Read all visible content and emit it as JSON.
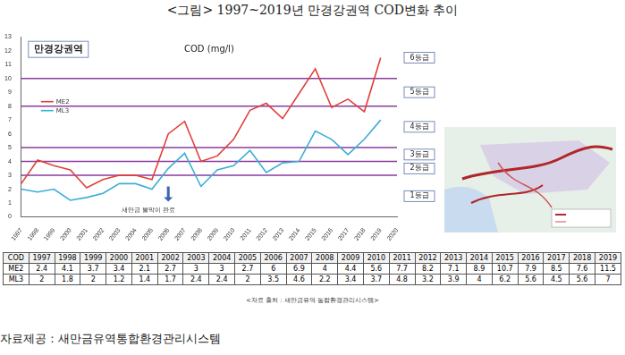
{
  "page_title": "<그림> 1997~2019년 만경강권역 COD변화 추이",
  "chart_data": {
    "type": "line",
    "title": "만경강권역",
    "subtitle": "COD (mg/l)",
    "categories": [
      "1997",
      "1998",
      "1999",
      "2000",
      "2001",
      "2002",
      "2003",
      "2004",
      "2005",
      "2006",
      "2007",
      "2008",
      "2009",
      "2010",
      "2011",
      "2012",
      "2013",
      "2014",
      "2015",
      "2016",
      "2017",
      "2018",
      "2019",
      "2020"
    ],
    "series": [
      {
        "name": "ME2",
        "color": "#e0403a",
        "values": [
          2.4,
          4.1,
          3.7,
          3.4,
          2.1,
          2.7,
          3,
          3,
          2.7,
          6,
          6.9,
          4,
          4.4,
          5.6,
          7.7,
          8.2,
          7.1,
          8.9,
          10.7,
          7.9,
          8.5,
          7.6,
          11.5,
          null
        ]
      },
      {
        "name": "ML3",
        "color": "#3aaed8",
        "values": [
          2,
          1.8,
          2,
          1.2,
          1.4,
          1.7,
          2.4,
          2.4,
          2,
          3.5,
          4.6,
          2.2,
          3.4,
          3.7,
          4.8,
          3.2,
          3.9,
          4,
          6.2,
          5.6,
          4.5,
          5.6,
          7,
          null
        ]
      }
    ],
    "ylim": [
      0,
      13
    ],
    "yticks": [
      0,
      1,
      2,
      3,
      4,
      5,
      6,
      7,
      8,
      9,
      10,
      11,
      12,
      13
    ],
    "grid": false,
    "legend": "upper left",
    "grade_lines": [
      3,
      4,
      5,
      8,
      10
    ],
    "grade_labels": [
      {
        "value": 1.5,
        "label": "1등급"
      },
      {
        "value": 3.5,
        "label": "2등급"
      },
      {
        "value": 4.5,
        "label": "3등급"
      },
      {
        "value": 6.5,
        "label": "4등급"
      },
      {
        "value": 9,
        "label": "5등급"
      },
      {
        "value": 11.5,
        "label": "6등급"
      }
    ],
    "annotations": [
      {
        "x": "2006",
        "text": "새만금 물막이 완료"
      }
    ]
  },
  "table": {
    "header": [
      "COD",
      "1997",
      "1998",
      "1999",
      "2000",
      "2001",
      "2002",
      "2003",
      "2004",
      "2005",
      "2006",
      "2007",
      "2008",
      "2009",
      "2010",
      "2011",
      "2012",
      "2013",
      "2014",
      "2015",
      "2016",
      "2017",
      "2018",
      "2019"
    ],
    "rows": [
      [
        "ME2",
        "2.4",
        "4.1",
        "3.7",
        "3.4",
        "2.1",
        "2.7",
        "3",
        "3",
        "2.7",
        "6",
        "6.9",
        "4",
        "4.4",
        "5.6",
        "7.7",
        "8.2",
        "7.1",
        "8.9",
        "10.7",
        "7.9",
        "8.5",
        "7.6",
        "11.5"
      ],
      [
        "ML3",
        "2",
        "1.8",
        "2",
        "1.2",
        "1.4",
        "1.7",
        "2.4",
        "2.4",
        "2",
        "3.5",
        "4.6",
        "2.2",
        "3.4",
        "3.7",
        "4.8",
        "3.2",
        "3.9",
        "4",
        "6.2",
        "5.6",
        "4.5",
        "5.6",
        "7"
      ]
    ]
  },
  "source_note": "<자료 출처 : 새만금유역 통합환경관리시스템>",
  "credit": "자료제공 : 새만금유역통합환경관리시스템"
}
